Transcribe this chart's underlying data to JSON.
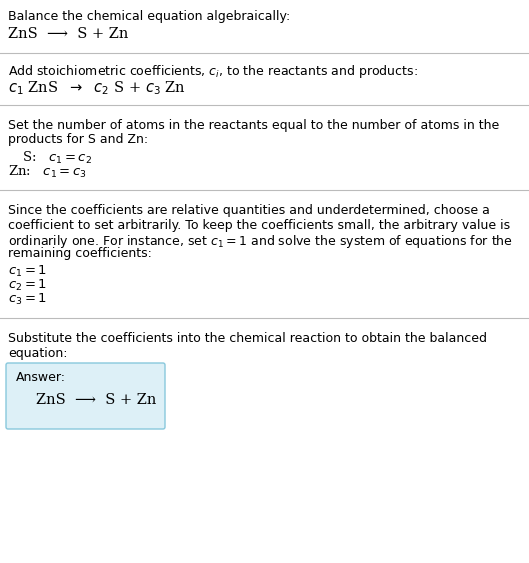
{
  "title_line1": "Balance the chemical equation algebraically:",
  "title_line2": "ZnS  ⟶  S + Zn",
  "section2_intro": "Add stoichiometric coefficients, $c_i$, to the reactants and products:",
  "section2_eq": "$c_1$ ZnS  $\\rightarrow$  $c_2$ S + $c_3$ Zn",
  "section3_intro_1": "Set the number of atoms in the reactants equal to the number of atoms in the",
  "section3_intro_2": "products for S and Zn:",
  "section3_s": "S:   $c_1 = c_2$",
  "section3_zn": "Zn:   $c_1 = c_3$",
  "section4_intro_1": "Since the coefficients are relative quantities and underdetermined, choose a",
  "section4_intro_2": "coefficient to set arbitrarily. To keep the coefficients small, the arbitrary value is",
  "section4_intro_3": "ordinarily one. For instance, set $c_1 = 1$ and solve the system of equations for the",
  "section4_intro_4": "remaining coefficients:",
  "section4_c1": "$c_1 = 1$",
  "section4_c2": "$c_2 = 1$",
  "section4_c3": "$c_3 = 1$",
  "section5_intro_1": "Substitute the coefficients into the chemical reaction to obtain the balanced",
  "section5_intro_2": "equation:",
  "answer_label": "Answer:",
  "answer_eq": "ZnS  ⟶  S + Zn",
  "bg_color": "#ffffff",
  "text_color": "#000000",
  "line_color": "#bbbbbb",
  "answer_box_color": "#ddf0f7",
  "answer_box_border": "#88c8dc"
}
